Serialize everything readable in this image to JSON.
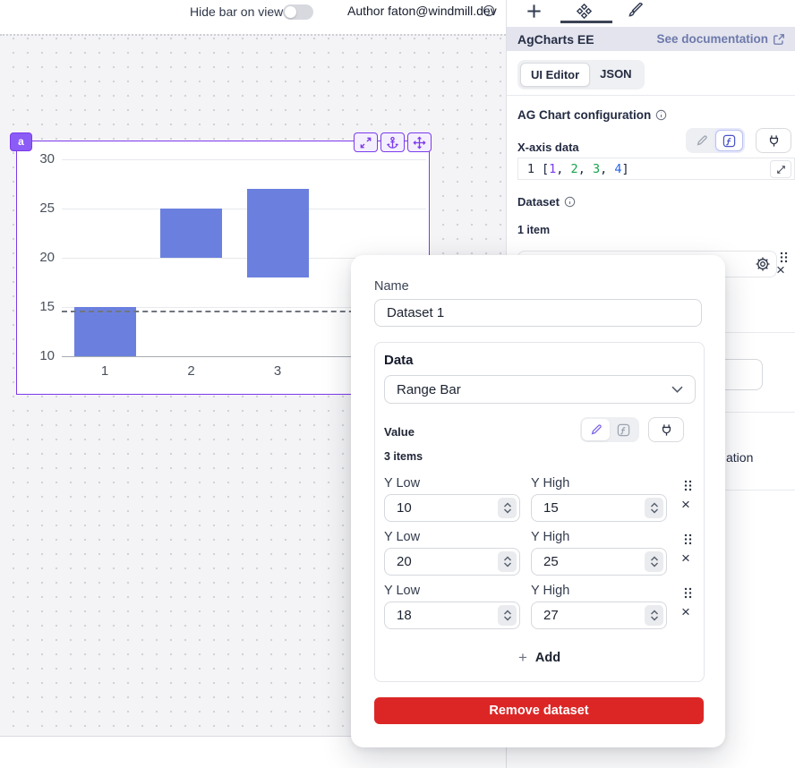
{
  "topbar": {
    "hide_bar_label": "Hide bar on view",
    "hide_bar_toggle": "off",
    "author_label": "Author faton@windmill.dev"
  },
  "canvas": {
    "component_badge": "a"
  },
  "chart_data": {
    "type": "bar",
    "subtype": "range-bar-vertical",
    "title": "",
    "xlabel": "",
    "ylabel": "",
    "x": [
      1,
      2,
      3,
      4
    ],
    "series": [
      {
        "name": "Dataset 1",
        "ranges": [
          [
            10,
            15
          ],
          [
            20,
            25
          ],
          [
            18,
            27
          ]
        ]
      }
    ],
    "y_ticks": [
      30,
      25,
      20,
      15,
      10
    ],
    "ylim": [
      10,
      30
    ],
    "dashed_line_y": 14.6,
    "grid": "horizontal",
    "legend": "off",
    "bar_color": "#6b80de"
  },
  "panel": {
    "title": "AgCharts EE",
    "doc_link": "See documentation",
    "editor_tabs": {
      "ui": "UI Editor",
      "json": "JSON"
    },
    "config_title": "AG Chart configuration",
    "xaxis_label": "X-axis data",
    "code": {
      "line_number": "1",
      "tokens": [
        {
          "t": "["
        },
        {
          "t": "1"
        },
        {
          "t": ", "
        },
        {
          "t": "2"
        },
        {
          "t": ", "
        },
        {
          "t": "3"
        },
        {
          "t": ", "
        },
        {
          "t": "4"
        },
        {
          "t": "]"
        }
      ]
    },
    "dataset_label": "Dataset",
    "item_count": "1 item",
    "hidden_fragment": "ation"
  },
  "modal": {
    "name_label": "Name",
    "name_value": "Dataset 1",
    "data_label": "Data",
    "data_type_value": "Range Bar",
    "value_label": "Value",
    "items_count": "3 items",
    "rows": [
      {
        "low_label": "Y Low",
        "high_label": "Y High",
        "low": "10",
        "high": "15"
      },
      {
        "low_label": "Y Low",
        "high_label": "Y High",
        "low": "20",
        "high": "25"
      },
      {
        "low_label": "Y Low",
        "high_label": "Y High",
        "low": "18",
        "high": "27"
      }
    ],
    "add_label": "Add",
    "remove_label": "Remove dataset"
  },
  "colors": {
    "accent_purple": "#7c3aed",
    "badge_bg": "#8b5cf6",
    "bar": "#6b80de",
    "remove_red": "#dc2626",
    "doc_link": "#6d79ab"
  }
}
